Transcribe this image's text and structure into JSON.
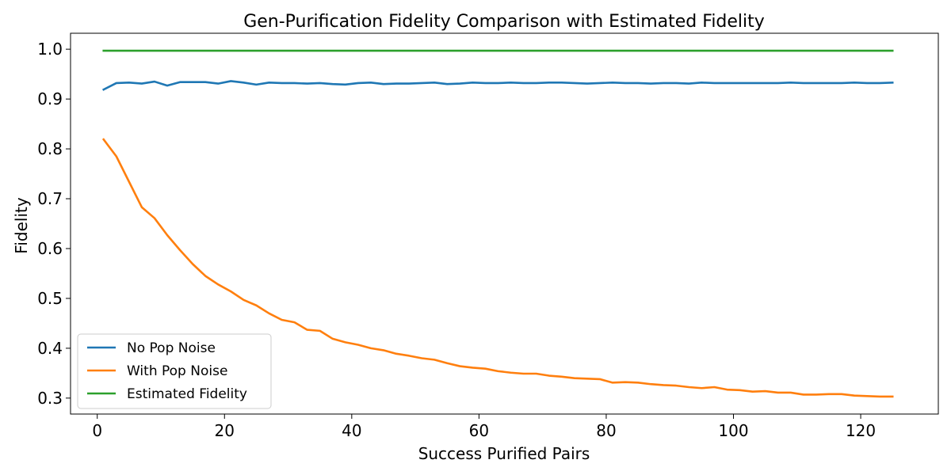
{
  "chart_data": {
    "type": "line",
    "title": "Gen-Purification Fidelity Comparison with Estimated Fidelity",
    "xlabel": "Success Purified Pairs",
    "ylabel": "Fidelity",
    "xlim": [
      -4.2,
      132.2
    ],
    "ylim": [
      0.268,
      1.032
    ],
    "xticks": [
      0,
      20,
      40,
      60,
      80,
      100,
      120
    ],
    "yticks": [
      0.3,
      0.4,
      0.5,
      0.6,
      0.7,
      0.8,
      0.9,
      1.0
    ],
    "ytick_labels": [
      "0.3",
      "0.4",
      "0.5",
      "0.6",
      "0.7",
      "0.8",
      "0.9",
      "1.0"
    ],
    "grid": false,
    "legend_position": "lower-left",
    "x": [
      1,
      3,
      5,
      7,
      9,
      11,
      13,
      15,
      17,
      19,
      21,
      23,
      25,
      27,
      29,
      31,
      33,
      35,
      37,
      39,
      41,
      43,
      45,
      47,
      49,
      51,
      53,
      55,
      57,
      59,
      61,
      63,
      65,
      67,
      69,
      71,
      73,
      75,
      77,
      79,
      81,
      83,
      85,
      87,
      89,
      91,
      93,
      95,
      97,
      99,
      101,
      103,
      105,
      107,
      109,
      111,
      113,
      115,
      117,
      119,
      121,
      123,
      125
    ],
    "series": [
      {
        "name": "No Pop Noise",
        "color": "#1f77b4",
        "values": [
          0.919,
          0.932,
          0.933,
          0.931,
          0.935,
          0.927,
          0.934,
          0.934,
          0.934,
          0.931,
          0.936,
          0.933,
          0.929,
          0.933,
          0.932,
          0.932,
          0.931,
          0.932,
          0.93,
          0.929,
          0.932,
          0.933,
          0.93,
          0.931,
          0.931,
          0.932,
          0.933,
          0.93,
          0.931,
          0.933,
          0.932,
          0.932,
          0.933,
          0.932,
          0.932,
          0.933,
          0.933,
          0.932,
          0.931,
          0.932,
          0.933,
          0.932,
          0.932,
          0.931,
          0.932,
          0.932,
          0.931,
          0.933,
          0.932,
          0.932,
          0.932,
          0.932,
          0.932,
          0.932,
          0.933,
          0.932,
          0.932,
          0.932,
          0.932,
          0.933,
          0.932,
          0.932,
          0.933
        ]
      },
      {
        "name": "With Pop Noise",
        "color": "#ff7f0e",
        "values": [
          0.819,
          0.785,
          0.734,
          0.683,
          0.661,
          0.627,
          0.597,
          0.569,
          0.545,
          0.528,
          0.514,
          0.497,
          0.486,
          0.47,
          0.457,
          0.452,
          0.437,
          0.435,
          0.419,
          0.412,
          0.407,
          0.4,
          0.396,
          0.389,
          0.385,
          0.38,
          0.377,
          0.37,
          0.364,
          0.361,
          0.359,
          0.354,
          0.351,
          0.349,
          0.349,
          0.345,
          0.343,
          0.34,
          0.339,
          0.338,
          0.331,
          0.332,
          0.331,
          0.328,
          0.326,
          0.325,
          0.322,
          0.32,
          0.322,
          0.317,
          0.316,
          0.313,
          0.314,
          0.311,
          0.311,
          0.307,
          0.307,
          0.308,
          0.308,
          0.305,
          0.304,
          0.303,
          0.303
        ]
      },
      {
        "name": "Estimated Fidelity",
        "color": "#2ca02c",
        "values": [
          0.997,
          0.997,
          0.997,
          0.997,
          0.997,
          0.997,
          0.997,
          0.997,
          0.997,
          0.997,
          0.997,
          0.997,
          0.997,
          0.997,
          0.997,
          0.997,
          0.997,
          0.997,
          0.997,
          0.997,
          0.997,
          0.997,
          0.997,
          0.997,
          0.997,
          0.997,
          0.997,
          0.997,
          0.997,
          0.997,
          0.997,
          0.997,
          0.997,
          0.997,
          0.997,
          0.997,
          0.997,
          0.997,
          0.997,
          0.997,
          0.997,
          0.997,
          0.997,
          0.997,
          0.997,
          0.997,
          0.997,
          0.997,
          0.997,
          0.997,
          0.997,
          0.997,
          0.997,
          0.997,
          0.997,
          0.997,
          0.997,
          0.997,
          0.997,
          0.997,
          0.997,
          0.997,
          0.997
        ]
      }
    ]
  }
}
